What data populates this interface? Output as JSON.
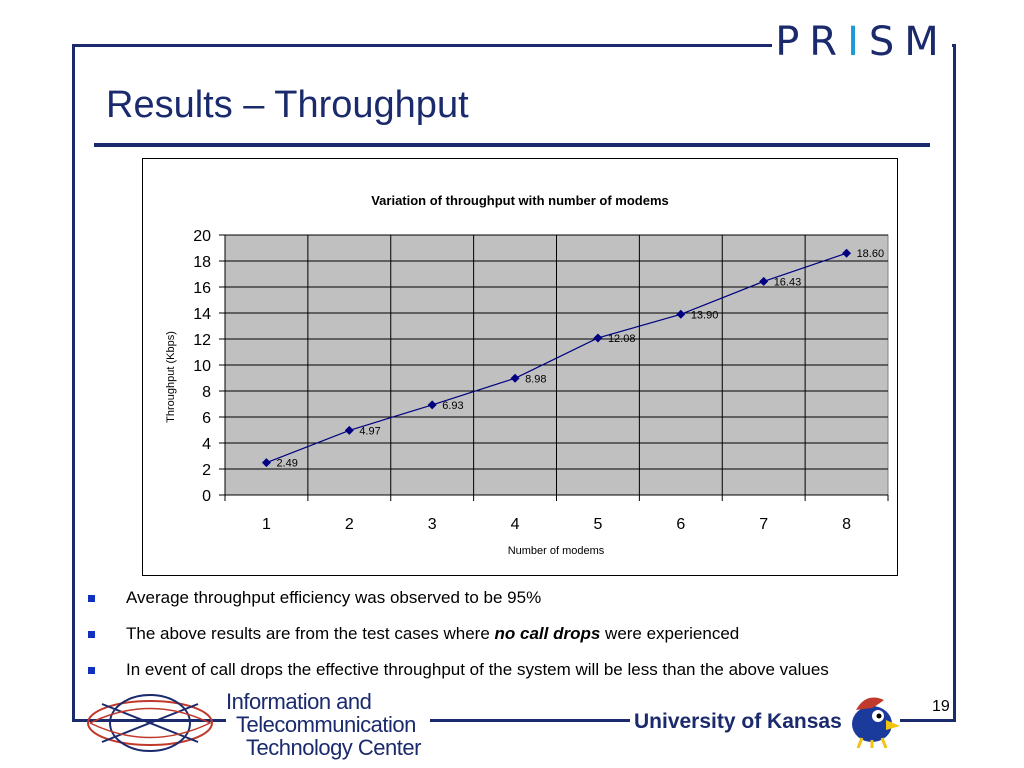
{
  "slide": {
    "brand": {
      "part1": "PR",
      "part2": "I",
      "part3": "SM"
    },
    "title": "Results – Throughput",
    "bullets": [
      {
        "pre": "Average throughput efficiency  was observed to be 95%",
        "em": "",
        "post": ""
      },
      {
        "pre": "The above results are from the test cases where ",
        "em": "no call drops",
        "post": " were experienced"
      },
      {
        "pre": "In event of call drops the effective throughput of the system will be less than the above values",
        "em": "",
        "post": ""
      }
    ],
    "footer": {
      "itc_line1": "Information and",
      "itc_line2": "Telecommunication",
      "itc_line3": "Technology Center",
      "university": "University of Kansas",
      "page_number": "19"
    }
  },
  "colors": {
    "frame": "#1a2a6c",
    "plot_bg": "#c0c0c0",
    "series": "#000080",
    "bullet": "#1030c0"
  },
  "chart_data": {
    "type": "line",
    "title": "Variation of throughput with number of modems",
    "xlabel": "Number of modems",
    "ylabel": "Throughput (Kbps)",
    "categories": [
      "1",
      "2",
      "3",
      "4",
      "5",
      "6",
      "7",
      "8"
    ],
    "y_ticks": [
      "0",
      "2",
      "4",
      "6",
      "8",
      "10",
      "12",
      "14",
      "16",
      "18",
      "20"
    ],
    "ylim": [
      0,
      20
    ],
    "grid": true,
    "legend": "none",
    "series": [
      {
        "values": [
          2.49,
          4.97,
          6.93,
          8.98,
          12.08,
          13.9,
          16.43,
          18.6
        ],
        "labels": [
          "2.49",
          "4.97",
          "6.93",
          "8.98",
          "12.08",
          "13.90",
          "16.43",
          "18.60"
        ]
      }
    ]
  }
}
